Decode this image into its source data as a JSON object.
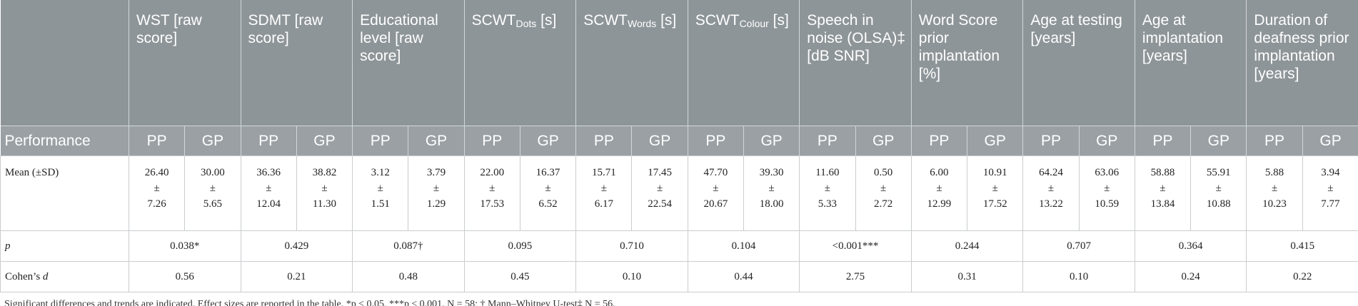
{
  "table": {
    "row_labels": {
      "performance": "Performance",
      "mean": "Mean (±SD)",
      "p": "p",
      "cohen": "Cohen’s",
      "cohen_italic": "d"
    },
    "groups": [
      "PP",
      "GP"
    ],
    "pm_symbol": "±",
    "columns": [
      {
        "label": "WST",
        "unit": "[raw score]",
        "mean": [
          "26.40",
          "30.00"
        ],
        "sd": [
          "7.26",
          "5.65"
        ],
        "p": "0.038*",
        "d": "0.56"
      },
      {
        "label": "SDMT",
        "unit": "[raw score]",
        "mean": [
          "36.36",
          "38.82"
        ],
        "sd": [
          "12.04",
          "11.30"
        ],
        "p": "0.429",
        "d": "0.21"
      },
      {
        "label": "Educational level",
        "unit": "[raw score]",
        "mean": [
          "3.12",
          "3.79"
        ],
        "sd": [
          "1.51",
          "1.29"
        ],
        "p": "0.087†",
        "d": "0.48"
      },
      {
        "label": "SCWT",
        "sub": "Dots",
        "unit": "[s]",
        "mean": [
          "22.00",
          "16.37"
        ],
        "sd": [
          "17.53",
          "6.52"
        ],
        "p": "0.095",
        "d": "0.45"
      },
      {
        "label": "SCWT",
        "sub": "Words",
        "unit": "[s]",
        "mean": [
          "15.71",
          "17.45"
        ],
        "sd": [
          "6.17",
          "22.54"
        ],
        "p": "0.710",
        "d": "0.10"
      },
      {
        "label": "SCWT",
        "sub": "Colour",
        "unit": "[s]",
        "mean": [
          "47.70",
          "39.30"
        ],
        "sd": [
          "20.67",
          "18.00"
        ],
        "p": "0.104",
        "d": "0.44"
      },
      {
        "label": "Speech in noise (OLSA)‡",
        "unit": "[dB SNR]",
        "mean": [
          "11.60",
          "0.50"
        ],
        "sd": [
          "5.33",
          "2.72"
        ],
        "p": "<0.001***",
        "d": "2.75"
      },
      {
        "label": "Word Score prior implantation",
        "unit": "[%]",
        "mean": [
          "6.00",
          "10.91"
        ],
        "sd": [
          "12.99",
          "17.52"
        ],
        "p": "0.244",
        "d": "0.31"
      },
      {
        "label": "Age at testing",
        "unit": "[years]",
        "mean": [
          "64.24",
          "63.06"
        ],
        "sd": [
          "13.22",
          "10.59"
        ],
        "p": "0.707",
        "d": "0.10"
      },
      {
        "label": "Age at implantation",
        "unit": "[years]",
        "mean": [
          "58.88",
          "55.91"
        ],
        "sd": [
          "13.84",
          "10.88"
        ],
        "p": "0.364",
        "d": "0.24"
      },
      {
        "label": "Duration of deafness prior implantation",
        "unit": "[years]",
        "mean": [
          "5.88",
          "3.94"
        ],
        "sd": [
          "10.23",
          "7.77"
        ],
        "p": "0.415",
        "d": "0.22"
      }
    ],
    "footnote": "Significant differences and trends are indicated. Effect sizes are reported in the table. *p ≤ 0.05, ***p ≤ 0.001. N = 58; † Mann–Whitney U-test‡ N = 56."
  }
}
